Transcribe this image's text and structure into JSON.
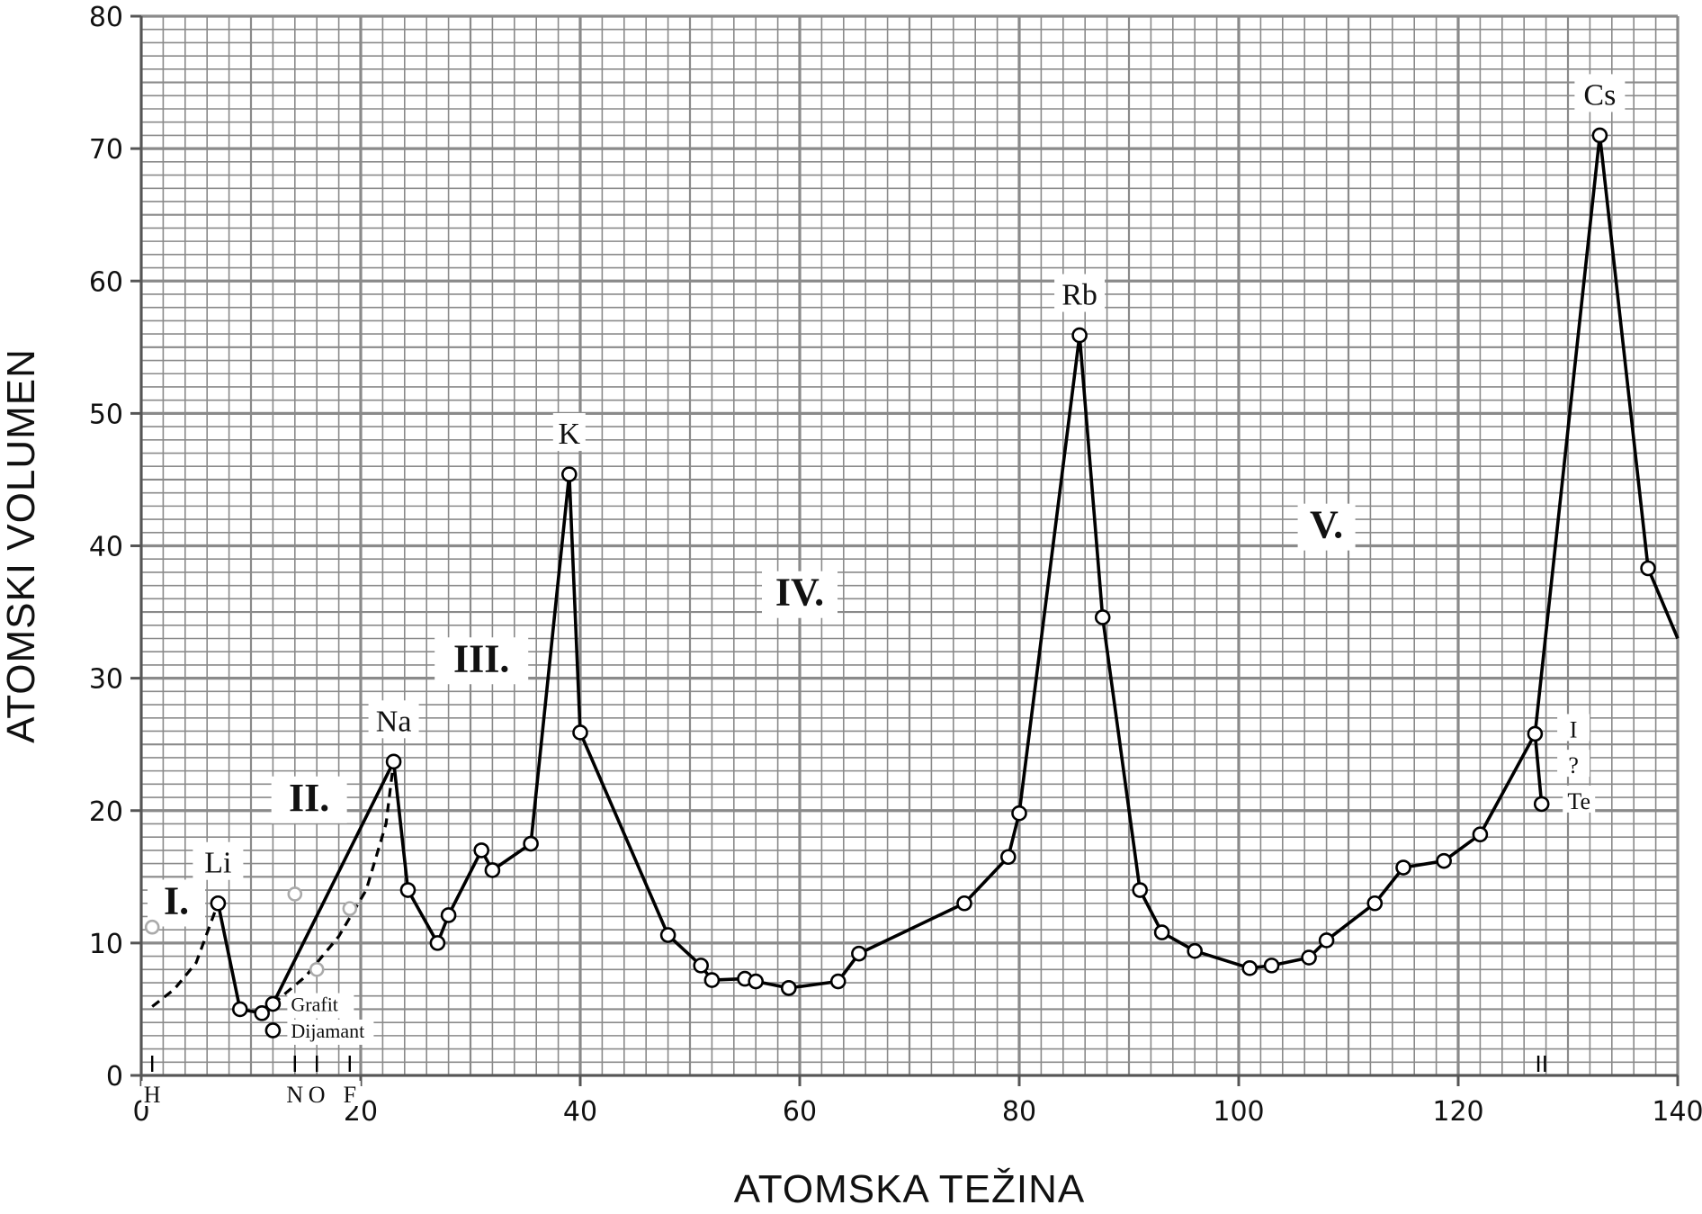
{
  "chart_data": {
    "type": "line",
    "title": "",
    "xlabel": "ATOMSKA  TEŽINA",
    "ylabel": "ATOMSKI  VOLUMEN",
    "xlim": [
      0,
      140
    ],
    "ylim": [
      0,
      80
    ],
    "x_ticks": [
      0,
      20,
      40,
      60,
      80,
      100,
      120,
      140
    ],
    "y_ticks": [
      0,
      10,
      20,
      30,
      40,
      50,
      60,
      70,
      80
    ],
    "grid": true,
    "colors": {
      "grid": "#8a8a8a",
      "line": "#000000",
      "gray_points": "#aaaaaa"
    },
    "main_series": [
      [
        7,
        13
      ],
      [
        9,
        5
      ],
      [
        11,
        4.7
      ],
      [
        12,
        5.4
      ],
      [
        23,
        23.7
      ],
      [
        24.3,
        14
      ],
      [
        27,
        10
      ],
      [
        28,
        12.1
      ],
      [
        31,
        17
      ],
      [
        32,
        15.5
      ],
      [
        35.5,
        17.5
      ],
      [
        39,
        45.4
      ],
      [
        40,
        25.9
      ],
      [
        48,
        10.6
      ],
      [
        51,
        8.3
      ],
      [
        52,
        7.2
      ],
      [
        55,
        7.3
      ],
      [
        56,
        7.1
      ],
      [
        59,
        6.6
      ],
      [
        59,
        6.6
      ],
      [
        63.5,
        7.1
      ],
      [
        65.4,
        9.2
      ],
      [
        75,
        13
      ],
      [
        79,
        16.5
      ],
      [
        80,
        19.8
      ],
      [
        85.5,
        55.9
      ],
      [
        87.6,
        34.6
      ],
      [
        91,
        14
      ],
      [
        93,
        10.8
      ],
      [
        96,
        9.4
      ],
      [
        101,
        8.1
      ],
      [
        103,
        8.3
      ],
      [
        106.4,
        8.9
      ],
      [
        108,
        10.2
      ],
      [
        112.4,
        13
      ],
      [
        115,
        15.7
      ],
      [
        118.7,
        16.2
      ],
      [
        122,
        18.2
      ],
      [
        127,
        25.8
      ],
      [
        127.6,
        20.5
      ]
    ],
    "main_series_tail": [
      [
        132.9,
        71
      ],
      [
        137.3,
        38.3
      ],
      [
        140,
        33
      ]
    ],
    "extra_segments": [
      [
        [
          127,
          25.8
        ],
        [
          132.9,
          71
        ]
      ]
    ],
    "dashed_series": [
      [
        [
          1,
          5.2
        ],
        [
          3,
          6.5
        ],
        [
          5,
          8.5
        ],
        [
          7,
          13
        ]
      ],
      [
        [
          12,
          5.4
        ],
        [
          15,
          7.5
        ],
        [
          18,
          10.5
        ],
        [
          20.5,
          14
        ],
        [
          22.3,
          19
        ],
        [
          23,
          23.7
        ]
      ]
    ],
    "isolated_points": [
      [
        12,
        3.4
      ]
    ],
    "gray_points": [
      [
        1,
        11.2
      ],
      [
        14,
        13.7
      ],
      [
        16,
        8
      ],
      [
        19,
        12.6
      ]
    ],
    "point_labels": [
      {
        "text": "Li",
        "x": 7,
        "y": 13
      },
      {
        "text": "Na",
        "x": 23,
        "y": 23.7
      },
      {
        "text": "K",
        "x": 39,
        "y": 45.4
      },
      {
        "text": "Rb",
        "x": 85.5,
        "y": 55.9
      },
      {
        "text": "Cs",
        "x": 132.9,
        "y": 71
      },
      {
        "text": "Grafit",
        "x": 12,
        "y": 5.4
      },
      {
        "text": "Dijamant",
        "x": 12,
        "y": 3.4
      }
    ],
    "side_labels": [
      {
        "text": "I",
        "x": 130.5,
        "y": 25.8
      },
      {
        "text": "?",
        "x": 130.5,
        "y": 23.1
      },
      {
        "text": "Te",
        "x": 131,
        "y": 20.4
      }
    ],
    "bottom_labels": [
      {
        "text": "H",
        "x": 1
      },
      {
        "text": "N",
        "x": 14
      },
      {
        "text": "O",
        "x": 16
      },
      {
        "text": "F",
        "x": 19
      }
    ],
    "bottom_marks": [
      1,
      14,
      16,
      19,
      127.3,
      127.9
    ],
    "region_labels": [
      {
        "text": "I.",
        "x": 3.2,
        "y": 12.2
      },
      {
        "text": "II.",
        "x": 15.3,
        "y": 20
      },
      {
        "text": "III.",
        "x": 31,
        "y": 30.5
      },
      {
        "text": "IV.",
        "x": 60,
        "y": 35.5
      },
      {
        "text": "V.",
        "x": 108,
        "y": 40.6
      }
    ]
  }
}
